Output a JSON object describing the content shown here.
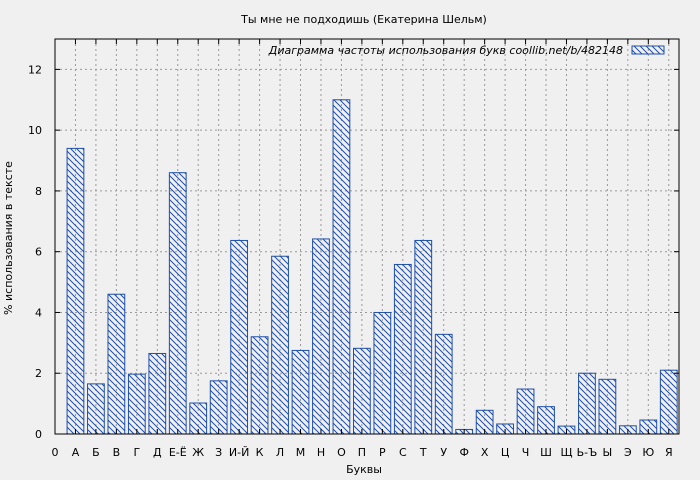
{
  "chart_data": {
    "type": "bar",
    "title": "Ты мне не подходишь (Екатерина Шельм)",
    "xlabel": "Буквы",
    "ylabel": "% использования в тексте",
    "ylim": [
      0,
      13
    ],
    "yticks": [
      0,
      2,
      4,
      6,
      8,
      10,
      12
    ],
    "grid": true,
    "legend_position": "top-right",
    "x_axis_start_label": "0",
    "categories": [
      "А",
      "Б",
      "В",
      "Г",
      "Д",
      "Е-Ё",
      "Ж",
      "З",
      "И-Й",
      "К",
      "Л",
      "М",
      "Н",
      "О",
      "П",
      "Р",
      "С",
      "Т",
      "У",
      "Ф",
      "Х",
      "Ц",
      "Ч",
      "Ш",
      "Щ",
      "Ь-Ъ",
      "Ы",
      "Э",
      "Ю",
      "Я"
    ],
    "series": [
      {
        "name": "Диаграмма частоты использования букв  coollib.net/b/482148",
        "color": "#1f4fa8",
        "values": [
          9.4,
          1.65,
          4.6,
          1.97,
          2.65,
          8.6,
          1.02,
          1.75,
          6.37,
          3.2,
          5.85,
          2.75,
          6.42,
          11.0,
          2.82,
          4.0,
          5.58,
          6.37,
          3.28,
          0.15,
          0.78,
          0.33,
          1.48,
          0.9,
          0.26,
          2.0,
          1.8,
          0.27,
          0.46,
          2.1
        ]
      }
    ]
  }
}
